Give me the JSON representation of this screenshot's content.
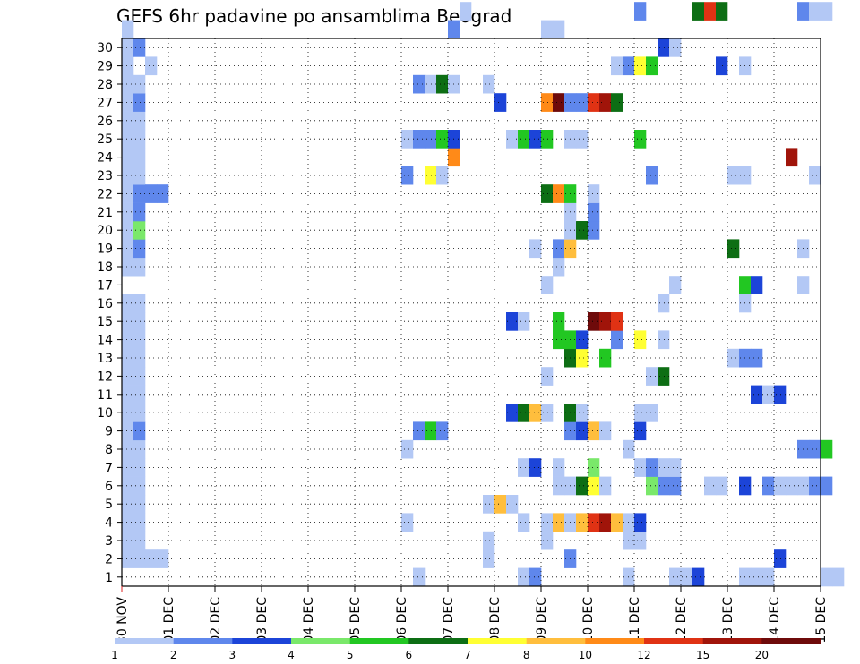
{
  "chart_data": {
    "type": "heatmap",
    "title": "GEFS 6hr padavine po ansamblima Beograd",
    "x_tick_labels": [
      "30 NOV",
      "01 DEC",
      "02 DEC",
      "03 DEC",
      "04 DEC",
      "05 DEC",
      "06 DEC",
      "07 DEC",
      "08 DEC",
      "09 DEC",
      "10 DEC",
      "11 DEC",
      "12 DEC",
      "13 DEC",
      "14 DEC",
      "15 DEC"
    ],
    "y_tick_labels": [
      "1",
      "2",
      "3",
      "4",
      "5",
      "6",
      "7",
      "8",
      "9",
      "10",
      "11",
      "12",
      "13",
      "14",
      "15",
      "16",
      "17",
      "18",
      "19",
      "20",
      "21",
      "22",
      "23",
      "24",
      "25",
      "26",
      "27",
      "28",
      "29",
      "30"
    ],
    "ylim": [
      0,
      30
    ],
    "x_step_hours": 6,
    "grid": true,
    "legend": {
      "placement": "bottom",
      "labels": [
        "1",
        "2",
        "3",
        "4",
        "5",
        "6",
        "7",
        "8",
        "10",
        "12",
        "15",
        "20"
      ],
      "colors": [
        "#b3c8f5",
        "#5f87ec",
        "#1c44d8",
        "#7ae86a",
        "#22c722",
        "#0d6e14",
        "#ffff33",
        "#ffbe3d",
        "#ff8a18",
        "#e03214",
        "#a0140a",
        "#6e0a0a"
      ]
    },
    "cells": [
      [
        1,
        0,
        1
      ],
      [
        1,
        1,
        1
      ],
      [
        2,
        0,
        1
      ],
      [
        2,
        1,
        1
      ],
      [
        3,
        0,
        1
      ],
      [
        3,
        1,
        1
      ],
      [
        4,
        0,
        1
      ],
      [
        4,
        1,
        1
      ],
      [
        5,
        0,
        1
      ],
      [
        5,
        1,
        1
      ],
      [
        6,
        0,
        1
      ],
      [
        6,
        1,
        1
      ],
      [
        7,
        0,
        1
      ],
      [
        7,
        1,
        1
      ],
      [
        8,
        0,
        1
      ],
      [
        8,
        1,
        2
      ],
      [
        9,
        0,
        1
      ],
      [
        9,
        1,
        1
      ],
      [
        10,
        0,
        1
      ],
      [
        10,
        1,
        1
      ],
      [
        11,
        0,
        1
      ],
      [
        11,
        1,
        1
      ],
      [
        12,
        0,
        1
      ],
      [
        12,
        1,
        1
      ],
      [
        13,
        0,
        1
      ],
      [
        13,
        1,
        1
      ],
      [
        14,
        0,
        1
      ],
      [
        14,
        1,
        1
      ],
      [
        15,
        0,
        1
      ],
      [
        15,
        1,
        1
      ],
      [
        17,
        0,
        1
      ],
      [
        17,
        1,
        1
      ],
      [
        18,
        0,
        1
      ],
      [
        18,
        1,
        2
      ],
      [
        19,
        0,
        1
      ],
      [
        19,
        1,
        4
      ],
      [
        20,
        0,
        1
      ],
      [
        20,
        1,
        2
      ],
      [
        21,
        0,
        1
      ],
      [
        21,
        1,
        2
      ],
      [
        22,
        0,
        1
      ],
      [
        22,
        1,
        1
      ],
      [
        23,
        0,
        1
      ],
      [
        23,
        1,
        1
      ],
      [
        24,
        0,
        1
      ],
      [
        24,
        1,
        1
      ],
      [
        25,
        0,
        1
      ],
      [
        25,
        1,
        1
      ],
      [
        26,
        0,
        1
      ],
      [
        26,
        1,
        2
      ],
      [
        27,
        0,
        1
      ],
      [
        27,
        1,
        1
      ],
      [
        28,
        0,
        1
      ],
      [
        28,
        2,
        1
      ],
      [
        29,
        0,
        1
      ],
      [
        29,
        1,
        2
      ],
      [
        30,
        0,
        1
      ],
      [
        1,
        2,
        1
      ],
      [
        1,
        3,
        1
      ],
      [
        21,
        2,
        2
      ],
      [
        21,
        3,
        2
      ],
      [
        0,
        25,
        1
      ],
      [
        0,
        34,
        1
      ],
      [
        0,
        35,
        2
      ],
      [
        0,
        43,
        1
      ],
      [
        0,
        47,
        1
      ],
      [
        0,
        48,
        1
      ],
      [
        0,
        49,
        3
      ],
      [
        0,
        53,
        1
      ],
      [
        0,
        54,
        1
      ],
      [
        0,
        55,
        1
      ],
      [
        0,
        60,
        1
      ],
      [
        0,
        61,
        1
      ],
      [
        0,
        65,
        1
      ],
      [
        0,
        66,
        5
      ],
      [
        0,
        67,
        1
      ],
      [
        0,
        68,
        1
      ],
      [
        0,
        69,
        1
      ],
      [
        0,
        70,
        1
      ],
      [
        1,
        38,
        2
      ],
      [
        1,
        56,
        3
      ],
      [
        1,
        31,
        1
      ],
      [
        2,
        31,
        1
      ],
      [
        2,
        44,
        1
      ],
      [
        3,
        24,
        1
      ],
      [
        3,
        34,
        1
      ],
      [
        2,
        43,
        1
      ],
      [
        2,
        36,
        1
      ],
      [
        3,
        36,
        1
      ],
      [
        3,
        37,
        8
      ],
      [
        3,
        38,
        1
      ],
      [
        3,
        39,
        8
      ],
      [
        3,
        40,
        10
      ],
      [
        3,
        41,
        11
      ],
      [
        3,
        42,
        8
      ],
      [
        3,
        43,
        1
      ],
      [
        3,
        44,
        3
      ],
      [
        4,
        31,
        1
      ],
      [
        4,
        32,
        8
      ],
      [
        4,
        33,
        1
      ],
      [
        5,
        37,
        1
      ],
      [
        5,
        38,
        1
      ],
      [
        5,
        39,
        6
      ],
      [
        5,
        40,
        7
      ],
      [
        5,
        41,
        1
      ],
      [
        5,
        45,
        4
      ],
      [
        5,
        46,
        2
      ],
      [
        5,
        47,
        2
      ],
      [
        5,
        50,
        1
      ],
      [
        5,
        51,
        1
      ],
      [
        5,
        53,
        3
      ],
      [
        5,
        55,
        2
      ],
      [
        5,
        56,
        1
      ],
      [
        5,
        57,
        1
      ],
      [
        5,
        58,
        1
      ],
      [
        5,
        59,
        2
      ],
      [
        5,
        60,
        2
      ],
      [
        6,
        0,
        1
      ],
      [
        6,
        34,
        1
      ],
      [
        6,
        35,
        3
      ],
      [
        6,
        37,
        1
      ],
      [
        6,
        40,
        4
      ],
      [
        6,
        44,
        1
      ],
      [
        6,
        45,
        2
      ],
      [
        6,
        46,
        1
      ],
      [
        6,
        47,
        1
      ],
      [
        7,
        24,
        1
      ],
      [
        7,
        43,
        1
      ],
      [
        7,
        58,
        2
      ],
      [
        7,
        59,
        2
      ],
      [
        7,
        60,
        5
      ],
      [
        8,
        25,
        2
      ],
      [
        8,
        26,
        5
      ],
      [
        8,
        27,
        2
      ],
      [
        8,
        38,
        2
      ],
      [
        8,
        39,
        3
      ],
      [
        8,
        40,
        8
      ],
      [
        8,
        41,
        1
      ],
      [
        8,
        44,
        3
      ],
      [
        9,
        33,
        3
      ],
      [
        9,
        34,
        6
      ],
      [
        9,
        35,
        8
      ],
      [
        9,
        36,
        1
      ],
      [
        9,
        38,
        6
      ],
      [
        9,
        39,
        1
      ],
      [
        9,
        44,
        1
      ],
      [
        9,
        45,
        1
      ],
      [
        10,
        54,
        3
      ],
      [
        10,
        55,
        1
      ],
      [
        10,
        56,
        3
      ],
      [
        11,
        36,
        1
      ],
      [
        11,
        45,
        1
      ],
      [
        11,
        46,
        6
      ],
      [
        12,
        38,
        6
      ],
      [
        12,
        39,
        7
      ],
      [
        12,
        41,
        5
      ],
      [
        12,
        52,
        1
      ],
      [
        12,
        53,
        2
      ],
      [
        12,
        54,
        2
      ],
      [
        13,
        37,
        5
      ],
      [
        13,
        38,
        5
      ],
      [
        13,
        39,
        3
      ],
      [
        13,
        42,
        2
      ],
      [
        13,
        44,
        7
      ],
      [
        13,
        46,
        1
      ],
      [
        14,
        33,
        3
      ],
      [
        14,
        34,
        1
      ],
      [
        14,
        37,
        5
      ],
      [
        14,
        40,
        12
      ],
      [
        14,
        41,
        11
      ],
      [
        14,
        42,
        10
      ],
      [
        15,
        46,
        1
      ],
      [
        15,
        53,
        1
      ],
      [
        16,
        36,
        1
      ],
      [
        16,
        47,
        1
      ],
      [
        16,
        53,
        5
      ],
      [
        16,
        54,
        3
      ],
      [
        16,
        58,
        1
      ],
      [
        17,
        37,
        1
      ],
      [
        18,
        35,
        1
      ],
      [
        18,
        37,
        2
      ],
      [
        18,
        38,
        8
      ],
      [
        18,
        52,
        6
      ],
      [
        18,
        58,
        1
      ],
      [
        19,
        38,
        1
      ],
      [
        19,
        39,
        6
      ],
      [
        19,
        40,
        2
      ],
      [
        20,
        38,
        1
      ],
      [
        20,
        40,
        2
      ],
      [
        21,
        36,
        6
      ],
      [
        21,
        37,
        9
      ],
      [
        21,
        38,
        5
      ],
      [
        21,
        40,
        1
      ],
      [
        22,
        24,
        2
      ],
      [
        22,
        26,
        7
      ],
      [
        22,
        27,
        1
      ],
      [
        22,
        45,
        2
      ],
      [
        22,
        52,
        1
      ],
      [
        22,
        53,
        1
      ],
      [
        22,
        59,
        1
      ],
      [
        23,
        28,
        9
      ],
      [
        23,
        57,
        11
      ],
      [
        24,
        24,
        1
      ],
      [
        24,
        25,
        2
      ],
      [
        24,
        26,
        2
      ],
      [
        24,
        27,
        5
      ],
      [
        24,
        28,
        3
      ],
      [
        24,
        33,
        1
      ],
      [
        24,
        34,
        5
      ],
      [
        24,
        35,
        3
      ],
      [
        24,
        36,
        5
      ],
      [
        24,
        38,
        1
      ],
      [
        24,
        39,
        1
      ],
      [
        24,
        44,
        5
      ],
      [
        26,
        32,
        3
      ],
      [
        26,
        36,
        9
      ],
      [
        26,
        37,
        12
      ],
      [
        26,
        38,
        2
      ],
      [
        26,
        39,
        2
      ],
      [
        26,
        40,
        10
      ],
      [
        26,
        41,
        11
      ],
      [
        26,
        42,
        6
      ],
      [
        27,
        25,
        2
      ],
      [
        27,
        26,
        1
      ],
      [
        27,
        27,
        6
      ],
      [
        27,
        28,
        1
      ],
      [
        27,
        31,
        1
      ],
      [
        28,
        42,
        1
      ],
      [
        28,
        43,
        2
      ],
      [
        28,
        44,
        7
      ],
      [
        28,
        45,
        5
      ],
      [
        28,
        51,
        3
      ],
      [
        28,
        53,
        1
      ],
      [
        29,
        46,
        3
      ],
      [
        29,
        47,
        1
      ],
      [
        30,
        36,
        1
      ],
      [
        30,
        37,
        1
      ],
      [
        31,
        58,
        2
      ],
      [
        31,
        59,
        1
      ],
      [
        31,
        60,
        1
      ],
      [
        30,
        28,
        2
      ],
      [
        31,
        29,
        1
      ],
      [
        31,
        44,
        2
      ],
      [
        31,
        49,
        6
      ],
      [
        31,
        50,
        10
      ],
      [
        31,
        51,
        6
      ]
    ]
  }
}
